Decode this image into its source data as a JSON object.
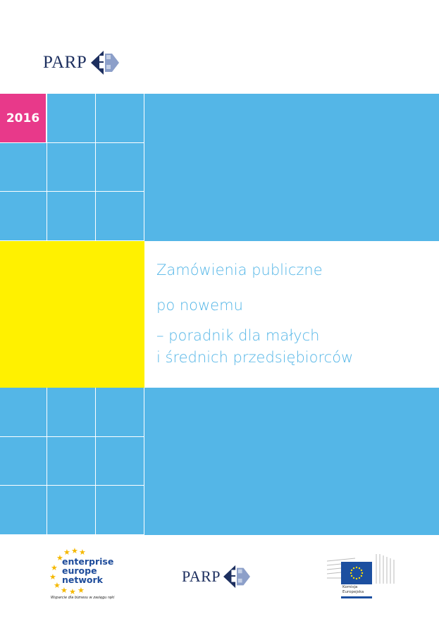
{
  "header": {
    "logo_text": "PARP"
  },
  "cover": {
    "year": "2016",
    "title_line1": "Zamówienia publiczne",
    "title_line2": "po nowemu",
    "subtitle_line1": "– poradnik dla małych",
    "subtitle_line2": "i średnich przedsiębiorców",
    "colors": {
      "blue": "#54b6e7",
      "pink": "#e8398a",
      "yellow": "#fff100",
      "text": "#54b6e7"
    }
  },
  "footer": {
    "een_line1": "enterprise",
    "een_line2": "europe",
    "een_line3": "network",
    "een_tagline": "Wsparcie dla biznesu w zasięgu ręki",
    "parp_text": "PARP",
    "ec_line1": "Komisja",
    "ec_line2": "Europejska"
  }
}
